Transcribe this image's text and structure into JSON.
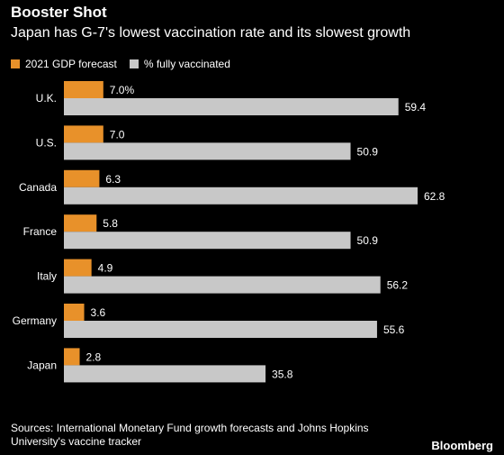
{
  "title": "Booster Shot",
  "subtitle": "Japan has G-7's lowest vaccination rate and its slowest growth",
  "source": "Sources: International Monetary Fund growth forecasts and Johns Hopkins University's vaccine tracker",
  "brand": "Bloomberg",
  "colors": {
    "gdp": "#e8912a",
    "vacc": "#c8c8c8",
    "background": "#000000",
    "text": "#ffffff"
  },
  "chart_data": {
    "type": "bar",
    "orientation": "horizontal",
    "categories": [
      "U.K.",
      "U.S.",
      "Canada",
      "France",
      "Italy",
      "Germany",
      "Japan"
    ],
    "series": [
      {
        "name": "2021 GDP forecast",
        "values": [
          7.0,
          7.0,
          6.3,
          5.8,
          4.9,
          3.6,
          2.8
        ],
        "labels": [
          "7.0%",
          "7.0",
          "6.3",
          "5.8",
          "4.9",
          "3.6",
          "2.8"
        ]
      },
      {
        "name": "% fully vaccinated",
        "values": [
          59.4,
          50.9,
          62.8,
          50.9,
          56.2,
          55.6,
          35.8
        ],
        "labels": [
          "59.4",
          "50.9",
          "62.8",
          "50.9",
          "56.2",
          "55.6",
          "35.8"
        ]
      }
    ],
    "legend_position": "top-left",
    "grid": false,
    "xlim": [
      0,
      62.8
    ]
  }
}
